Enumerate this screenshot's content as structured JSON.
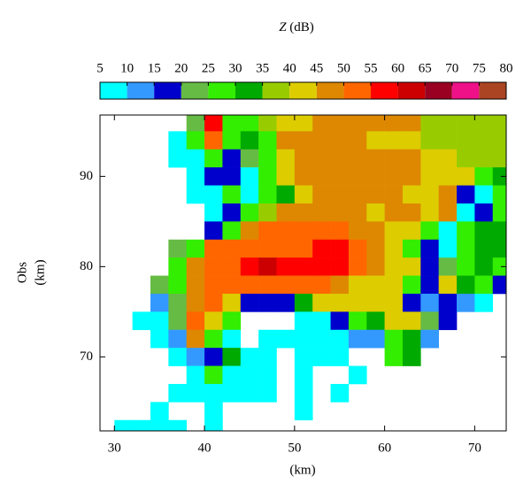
{
  "chart_data": {
    "type": "heatmap",
    "title_symbol": "Z",
    "title_unit": "(dB)",
    "y_label": [
      "Obs",
      "(km)"
    ],
    "x_label": "(km)",
    "xlim": [
      28.4,
      73.5
    ],
    "ylim": [
      61.8,
      96.8
    ],
    "xticks": [
      30,
      40,
      50,
      60,
      70
    ],
    "yticks": [
      70,
      80,
      90
    ],
    "x": [
      29,
      31,
      33,
      35,
      37,
      39,
      41,
      43,
      45,
      47,
      49,
      51,
      53,
      55,
      57,
      59,
      61,
      63,
      65,
      67,
      69,
      71,
      73
    ],
    "y": [
      96,
      94,
      92,
      90,
      88,
      86,
      84,
      82,
      80,
      78,
      76,
      74,
      72,
      70,
      68,
      66,
      64,
      62
    ],
    "values": [
      [
        null,
        null,
        null,
        null,
        null,
        22,
        57,
        27,
        27,
        37,
        42,
        42,
        47,
        47,
        47,
        47,
        47,
        47,
        37,
        37,
        37,
        37,
        37
      ],
      [
        null,
        null,
        null,
        null,
        7,
        27,
        52,
        27,
        32,
        27,
        47,
        47,
        47,
        47,
        47,
        42,
        42,
        42,
        37,
        37,
        37,
        37,
        37
      ],
      [
        null,
        null,
        null,
        null,
        7,
        7,
        27,
        17,
        22,
        27,
        42,
        47,
        47,
        47,
        47,
        47,
        47,
        47,
        42,
        42,
        37,
        37,
        37
      ],
      [
        null,
        null,
        null,
        null,
        null,
        7,
        17,
        17,
        7,
        27,
        42,
        47,
        47,
        47,
        47,
        47,
        47,
        47,
        42,
        42,
        42,
        27,
        32
      ],
      [
        null,
        null,
        null,
        null,
        null,
        7,
        7,
        27,
        7,
        27,
        32,
        42,
        47,
        47,
        47,
        47,
        47,
        42,
        42,
        47,
        17,
        7,
        27
      ],
      [
        null,
        null,
        null,
        null,
        null,
        null,
        7,
        17,
        27,
        37,
        47,
        47,
        47,
        47,
        47,
        42,
        47,
        47,
        42,
        47,
        7,
        17,
        27
      ],
      [
        null,
        null,
        null,
        null,
        null,
        null,
        17,
        27,
        47,
        52,
        52,
        52,
        52,
        52,
        47,
        47,
        42,
        42,
        27,
        7,
        27,
        32,
        32
      ],
      [
        null,
        null,
        null,
        null,
        22,
        27,
        52,
        52,
        52,
        52,
        52,
        52,
        57,
        57,
        52,
        47,
        42,
        27,
        17,
        7,
        27,
        32,
        32
      ],
      [
        null,
        null,
        null,
        null,
        27,
        47,
        52,
        52,
        57,
        62,
        57,
        57,
        57,
        57,
        52,
        47,
        42,
        42,
        17,
        22,
        27,
        32,
        27
      ],
      [
        null,
        null,
        null,
        22,
        27,
        47,
        52,
        52,
        52,
        52,
        52,
        52,
        52,
        47,
        42,
        42,
        42,
        27,
        17,
        42,
        32,
        27,
        17
      ],
      [
        null,
        null,
        null,
        12,
        22,
        47,
        52,
        42,
        17,
        17,
        17,
        32,
        42,
        42,
        42,
        42,
        42,
        17,
        12,
        17,
        12,
        7,
        null
      ],
      [
        null,
        null,
        7,
        7,
        22,
        52,
        42,
        27,
        null,
        null,
        null,
        7,
        7,
        17,
        27,
        32,
        42,
        42,
        22,
        17,
        null,
        null,
        null
      ],
      [
        null,
        null,
        null,
        7,
        12,
        47,
        27,
        7,
        null,
        7,
        7,
        7,
        7,
        7,
        12,
        12,
        27,
        32,
        12,
        null,
        null,
        null,
        null
      ],
      [
        null,
        null,
        null,
        null,
        7,
        12,
        17,
        32,
        7,
        7,
        null,
        7,
        7,
        7,
        null,
        null,
        27,
        32,
        null,
        null,
        null,
        null,
        null
      ],
      [
        null,
        null,
        null,
        null,
        null,
        7,
        27,
        7,
        7,
        7,
        null,
        7,
        null,
        null,
        7,
        null,
        null,
        null,
        null,
        null,
        null,
        null,
        null
      ],
      [
        null,
        null,
        null,
        null,
        7,
        7,
        7,
        7,
        7,
        7,
        null,
        7,
        null,
        7,
        null,
        null,
        null,
        null,
        null,
        null,
        null,
        null,
        null
      ],
      [
        null,
        null,
        null,
        7,
        null,
        null,
        7,
        null,
        null,
        null,
        null,
        7,
        null,
        null,
        null,
        null,
        null,
        null,
        null,
        null,
        null,
        null,
        null
      ],
      [
        null,
        7,
        7,
        7,
        7,
        null,
        7,
        null,
        null,
        null,
        null,
        null,
        null,
        null,
        null,
        null,
        null,
        null,
        null,
        null,
        null,
        null,
        null
      ]
    ],
    "colorbar": {
      "ticks": [
        5,
        10,
        15,
        20,
        25,
        30,
        35,
        40,
        45,
        50,
        55,
        60,
        65,
        70,
        75,
        80
      ],
      "colors": [
        "#00ffff",
        "#3399ff",
        "#0000cc",
        "#66bb44",
        "#33ee00",
        "#00aa00",
        "#99cc00",
        "#ddcc00",
        "#dd8800",
        "#ff6600",
        "#ff0000",
        "#cc0000",
        "#990022",
        "#ee1188",
        "#aa4422"
      ]
    }
  }
}
